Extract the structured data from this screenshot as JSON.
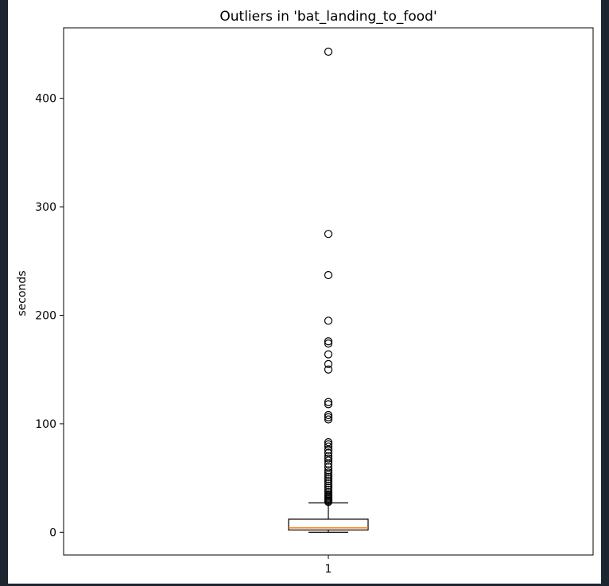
{
  "chart_data": {
    "type": "box",
    "title": "Outliers in 'bat_landing_to_food'",
    "xlabel": "",
    "ylabel": "seconds",
    "categories": [
      "1"
    ],
    "ylim": [
      -21,
      465
    ],
    "yticks": [
      0,
      100,
      200,
      300,
      400
    ],
    "grid": false,
    "boxes": [
      {
        "category": "1",
        "whisker_low": 0,
        "q1": 2,
        "median": 4,
        "q3": 12,
        "whisker_high": 27,
        "outliers": [
          443,
          275,
          237,
          195,
          176,
          174,
          164,
          155,
          150,
          120,
          118,
          108,
          106,
          104,
          83,
          81,
          79,
          76,
          73,
          70,
          68,
          66,
          63,
          60,
          57,
          55,
          53,
          51,
          49,
          47,
          45,
          43,
          41,
          39,
          37,
          35,
          34,
          33,
          32,
          31,
          30,
          29,
          28
        ]
      }
    ],
    "colors": {
      "median": "#ff7f0e",
      "box": "#000000",
      "figure_border": "#1c2530"
    }
  }
}
